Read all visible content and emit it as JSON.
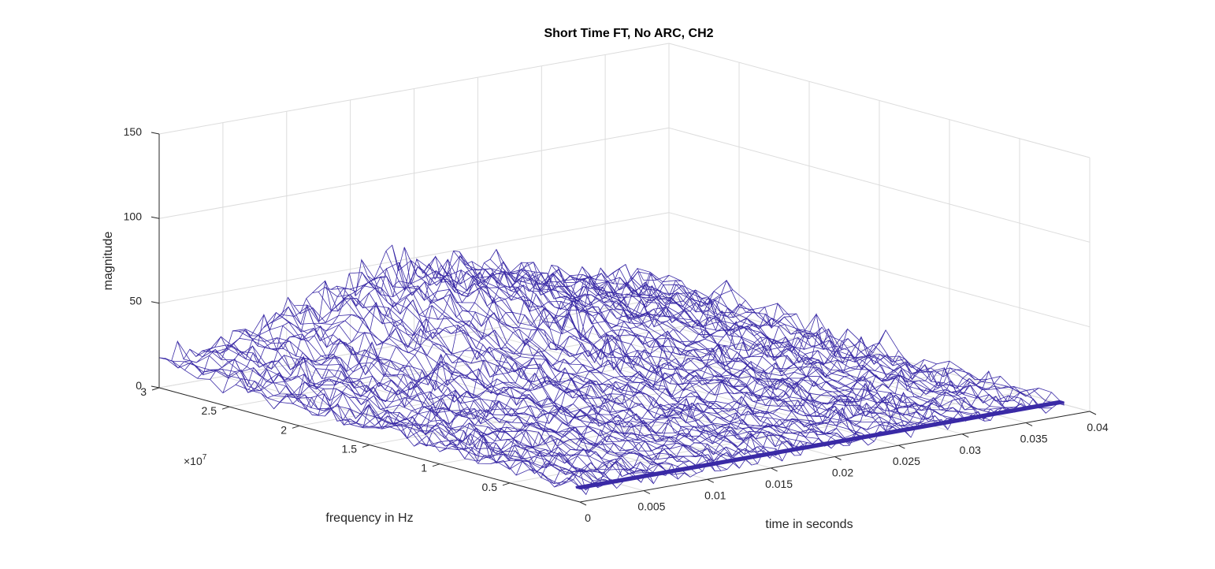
{
  "chart_data": {
    "type": "mesh3d",
    "title": "Short Time FT, No ARC, CH2",
    "xlabel": "time in seconds",
    "ylabel": "frequency in Hz",
    "zlabel": "magnitude",
    "xlim": [
      0,
      0.04
    ],
    "ylim": [
      0,
      30000000
    ],
    "zlim": [
      0,
      150
    ],
    "x_ticks": [
      "0",
      "0.005",
      "0.01",
      "0.015",
      "0.02",
      "0.025",
      "0.03",
      "0.035",
      "0.04"
    ],
    "y_ticks": [
      "0.5",
      "1",
      "1.5",
      "2",
      "2.5",
      "3"
    ],
    "z_ticks": [
      "0",
      "50",
      "100",
      "150"
    ],
    "y_exponent": "×10",
    "y_exponent_power": "7",
    "grid": true,
    "series_color": "#3a2aa6",
    "surface_summary": {
      "time_range_s": [
        0,
        0.038
      ],
      "frequency_range_hz": [
        0,
        30000000
      ],
      "typical_magnitude": [
        5,
        20
      ],
      "max_magnitude": 60,
      "peak_time_s": 0.019,
      "peak_frequency_hz": 30000000
    }
  }
}
